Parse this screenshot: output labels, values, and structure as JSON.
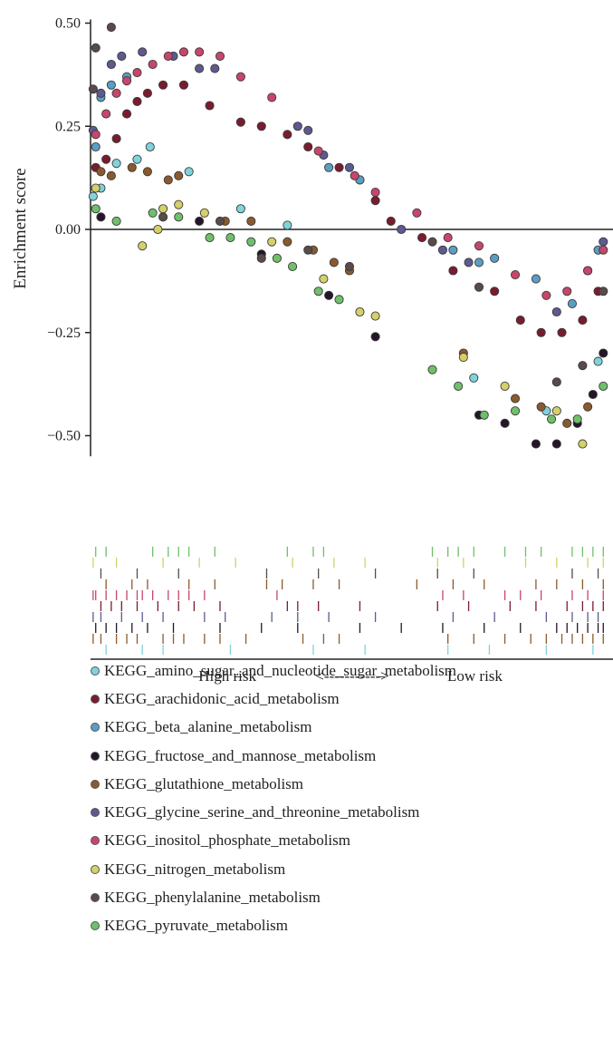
{
  "chart_data": {
    "type": "scatter",
    "title": "",
    "ylabel": "Enrichment score",
    "ylim": [
      -0.55,
      0.5
    ],
    "yticks": [
      "0.50",
      "0.25",
      "0.00",
      "−0.25",
      "−0.50"
    ],
    "xlabel_left": "High risk",
    "xlabel_arrow": "<-----------> ",
    "xlabel_right": "Low risk",
    "legend_position": "bottom",
    "series": [
      {
        "name": "KEGG_amino_sugar_and_nucleotide_sugar_metabolism",
        "color": "#7fd3dc",
        "points": [
          [
            0.005,
            0.08
          ],
          [
            0.02,
            0.1
          ],
          [
            0.05,
            0.16
          ],
          [
            0.09,
            0.17
          ],
          [
            0.115,
            0.2
          ],
          [
            0.19,
            0.14
          ],
          [
            0.29,
            0.05
          ],
          [
            0.38,
            0.01
          ],
          [
            0.74,
            -0.36
          ],
          [
            0.88,
            -0.44
          ],
          [
            0.98,
            -0.32
          ]
        ]
      },
      {
        "name": "KEGG_arachidonic_acid_metabolism",
        "color": "#7a1c2e",
        "points": [
          [
            0.01,
            0.15
          ],
          [
            0.03,
            0.17
          ],
          [
            0.05,
            0.22
          ],
          [
            0.07,
            0.28
          ],
          [
            0.09,
            0.31
          ],
          [
            0.11,
            0.33
          ],
          [
            0.14,
            0.35
          ],
          [
            0.18,
            0.35
          ],
          [
            0.23,
            0.3
          ],
          [
            0.29,
            0.26
          ],
          [
            0.33,
            0.25
          ],
          [
            0.38,
            0.23
          ],
          [
            0.42,
            0.2
          ],
          [
            0.48,
            0.15
          ],
          [
            0.52,
            0.12
          ],
          [
            0.55,
            0.07
          ],
          [
            0.58,
            0.02
          ],
          [
            0.64,
            -0.02
          ],
          [
            0.7,
            -0.1
          ],
          [
            0.78,
            -0.15
          ],
          [
            0.83,
            -0.22
          ],
          [
            0.87,
            -0.25
          ],
          [
            0.91,
            -0.25
          ],
          [
            0.95,
            -0.22
          ],
          [
            0.98,
            -0.15
          ]
        ]
      },
      {
        "name": "KEGG_beta_alanine_metabolism",
        "color": "#5a9ec4",
        "points": [
          [
            0.01,
            0.2
          ],
          [
            0.02,
            0.32
          ],
          [
            0.04,
            0.35
          ],
          [
            0.07,
            0.37
          ],
          [
            0.46,
            0.15
          ],
          [
            0.52,
            0.12
          ],
          [
            0.7,
            -0.05
          ],
          [
            0.75,
            -0.08
          ],
          [
            0.78,
            -0.07
          ],
          [
            0.86,
            -0.12
          ],
          [
            0.93,
            -0.18
          ],
          [
            0.98,
            -0.05
          ]
        ]
      },
      {
        "name": "KEGG_fructose_and_mannose_metabolism",
        "color": "#241628",
        "points": [
          [
            0.02,
            0.03
          ],
          [
            0.21,
            0.02
          ],
          [
            0.33,
            -0.06
          ],
          [
            0.46,
            -0.16
          ],
          [
            0.55,
            -0.26
          ],
          [
            0.75,
            -0.45
          ],
          [
            0.8,
            -0.47
          ],
          [
            0.86,
            -0.52
          ],
          [
            0.9,
            -0.52
          ],
          [
            0.94,
            -0.47
          ],
          [
            0.97,
            -0.4
          ],
          [
            0.99,
            -0.3
          ]
        ]
      },
      {
        "name": "KEGG_glutathione_metabolism",
        "color": "#8a5a2e",
        "points": [
          [
            0.02,
            0.14
          ],
          [
            0.04,
            0.13
          ],
          [
            0.08,
            0.15
          ],
          [
            0.11,
            0.14
          ],
          [
            0.15,
            0.12
          ],
          [
            0.17,
            0.13
          ],
          [
            0.26,
            0.02
          ],
          [
            0.31,
            0.02
          ],
          [
            0.38,
            -0.03
          ],
          [
            0.43,
            -0.05
          ],
          [
            0.47,
            -0.08
          ],
          [
            0.5,
            -0.1
          ],
          [
            0.72,
            -0.3
          ],
          [
            0.82,
            -0.41
          ],
          [
            0.87,
            -0.43
          ],
          [
            0.92,
            -0.47
          ],
          [
            0.96,
            -0.43
          ]
        ]
      },
      {
        "name": "KEGG_glycine_serine_and_threonine_metabolism",
        "color": "#5c5a8f",
        "points": [
          [
            0.005,
            0.24
          ],
          [
            0.02,
            0.33
          ],
          [
            0.04,
            0.4
          ],
          [
            0.06,
            0.42
          ],
          [
            0.1,
            0.43
          ],
          [
            0.16,
            0.42
          ],
          [
            0.21,
            0.39
          ],
          [
            0.24,
            0.39
          ],
          [
            0.4,
            0.25
          ],
          [
            0.42,
            0.24
          ],
          [
            0.45,
            0.18
          ],
          [
            0.5,
            0.15
          ],
          [
            0.6,
            0.0
          ],
          [
            0.68,
            -0.05
          ],
          [
            0.73,
            -0.08
          ],
          [
            0.9,
            -0.2
          ],
          [
            0.96,
            -0.1
          ],
          [
            0.99,
            -0.03
          ]
        ]
      },
      {
        "name": "KEGG_inositol_phosphate_metabolism",
        "color": "#c8466b",
        "points": [
          [
            0.01,
            0.23
          ],
          [
            0.03,
            0.28
          ],
          [
            0.05,
            0.33
          ],
          [
            0.07,
            0.36
          ],
          [
            0.09,
            0.38
          ],
          [
            0.12,
            0.4
          ],
          [
            0.15,
            0.42
          ],
          [
            0.18,
            0.43
          ],
          [
            0.21,
            0.43
          ],
          [
            0.25,
            0.42
          ],
          [
            0.29,
            0.37
          ],
          [
            0.35,
            0.32
          ],
          [
            0.44,
            0.19
          ],
          [
            0.51,
            0.13
          ],
          [
            0.55,
            0.09
          ],
          [
            0.63,
            0.04
          ],
          [
            0.69,
            -0.02
          ],
          [
            0.75,
            -0.04
          ],
          [
            0.82,
            -0.11
          ],
          [
            0.88,
            -0.16
          ],
          [
            0.92,
            -0.15
          ],
          [
            0.96,
            -0.1
          ],
          [
            0.99,
            -0.05
          ]
        ]
      },
      {
        "name": "KEGG_nitrogen_metabolism",
        "color": "#d4d06a",
        "points": [
          [
            0.01,
            0.1
          ],
          [
            0.1,
            -0.04
          ],
          [
            0.13,
            0.0
          ],
          [
            0.14,
            0.05
          ],
          [
            0.17,
            0.06
          ],
          [
            0.22,
            0.04
          ],
          [
            0.35,
            -0.03
          ],
          [
            0.45,
            -0.12
          ],
          [
            0.52,
            -0.2
          ],
          [
            0.55,
            -0.21
          ],
          [
            0.72,
            -0.31
          ],
          [
            0.8,
            -0.38
          ],
          [
            0.9,
            -0.44
          ],
          [
            0.95,
            -0.52
          ]
        ]
      },
      {
        "name": "KEGG_phenylalanine_metabolism",
        "color": "#5a4a4a",
        "points": [
          [
            0.005,
            0.34
          ],
          [
            0.01,
            0.44
          ],
          [
            0.04,
            0.49
          ],
          [
            0.14,
            0.03
          ],
          [
            0.25,
            0.02
          ],
          [
            0.33,
            -0.07
          ],
          [
            0.42,
            -0.05
          ],
          [
            0.5,
            -0.09
          ],
          [
            0.66,
            -0.03
          ],
          [
            0.75,
            -0.14
          ],
          [
            0.9,
            -0.37
          ],
          [
            0.95,
            -0.33
          ],
          [
            0.99,
            -0.15
          ]
        ]
      },
      {
        "name": "KEGG_pyruvate_metabolism",
        "color": "#6fc06a",
        "points": [
          [
            0.01,
            0.05
          ],
          [
            0.05,
            0.02
          ],
          [
            0.12,
            0.04
          ],
          [
            0.17,
            0.03
          ],
          [
            0.23,
            -0.02
          ],
          [
            0.27,
            -0.02
          ],
          [
            0.31,
            -0.03
          ],
          [
            0.36,
            -0.07
          ],
          [
            0.39,
            -0.09
          ],
          [
            0.44,
            -0.15
          ],
          [
            0.48,
            -0.17
          ],
          [
            0.66,
            -0.34
          ],
          [
            0.71,
            -0.38
          ],
          [
            0.76,
            -0.45
          ],
          [
            0.82,
            -0.44
          ],
          [
            0.89,
            -0.46
          ],
          [
            0.94,
            -0.46
          ],
          [
            0.99,
            -0.38
          ]
        ]
      }
    ]
  },
  "ticks_panel": {
    "rows": [
      {
        "color": "#6fc06a",
        "pos": [
          0.01,
          0.03,
          0.12,
          0.15,
          0.17,
          0.19,
          0.24,
          0.38,
          0.43,
          0.45,
          0.66,
          0.69,
          0.71,
          0.74,
          0.8,
          0.84,
          0.87,
          0.93,
          0.95,
          0.97,
          0.99
        ]
      },
      {
        "color": "#d4d06a",
        "pos": [
          0.005,
          0.05,
          0.14,
          0.21,
          0.28,
          0.39,
          0.47,
          0.53,
          0.67,
          0.72,
          0.84,
          0.9,
          0.96,
          0.99
        ]
      },
      {
        "color": "#5a4a4a",
        "pos": [
          0.02,
          0.09,
          0.17,
          0.34,
          0.44,
          0.55,
          0.67,
          0.74,
          0.93,
          0.98
        ]
      },
      {
        "color": "#8a5a2e",
        "pos": [
          0.03,
          0.08,
          0.11,
          0.19,
          0.24,
          0.34,
          0.37,
          0.43,
          0.48,
          0.63,
          0.7,
          0.76,
          0.86,
          0.9,
          0.95,
          0.99
        ]
      },
      {
        "color": "#c8466b",
        "pos": [
          0.005,
          0.01,
          0.03,
          0.05,
          0.07,
          0.09,
          0.1,
          0.12,
          0.15,
          0.17,
          0.19,
          0.22,
          0.36,
          0.68,
          0.72,
          0.8,
          0.83,
          0.87,
          0.93,
          0.96,
          0.99
        ]
      },
      {
        "color": "#7a1c2e",
        "pos": [
          0.02,
          0.04,
          0.06,
          0.09,
          0.13,
          0.17,
          0.2,
          0.25,
          0.38,
          0.4,
          0.44,
          0.52,
          0.67,
          0.73,
          0.81,
          0.86,
          0.92,
          0.95,
          0.97,
          0.99
        ]
      },
      {
        "color": "#5c5a8f",
        "pos": [
          0.005,
          0.02,
          0.06,
          0.1,
          0.14,
          0.22,
          0.26,
          0.35,
          0.4,
          0.46,
          0.55,
          0.7,
          0.78,
          0.88,
          0.93,
          0.96,
          0.98
        ]
      },
      {
        "color": "#241628",
        "pos": [
          0.01,
          0.03,
          0.05,
          0.08,
          0.11,
          0.16,
          0.25,
          0.33,
          0.4,
          0.52,
          0.6,
          0.68,
          0.76,
          0.83,
          0.9,
          0.92,
          0.94,
          0.96,
          0.98,
          0.99
        ]
      },
      {
        "color": "#8a5a2e",
        "pos": [
          0.005,
          0.02,
          0.05,
          0.07,
          0.09,
          0.14,
          0.16,
          0.18,
          0.22,
          0.25,
          0.3,
          0.41,
          0.45,
          0.48,
          0.69,
          0.74,
          0.8,
          0.85,
          0.88,
          0.91,
          0.93,
          0.95,
          0.97,
          0.99
        ]
      },
      {
        "color": "#7fd3dc",
        "pos": [
          0.03,
          0.1,
          0.14,
          0.27,
          0.43,
          0.53,
          0.69,
          0.77,
          0.88,
          0.97
        ]
      }
    ]
  }
}
